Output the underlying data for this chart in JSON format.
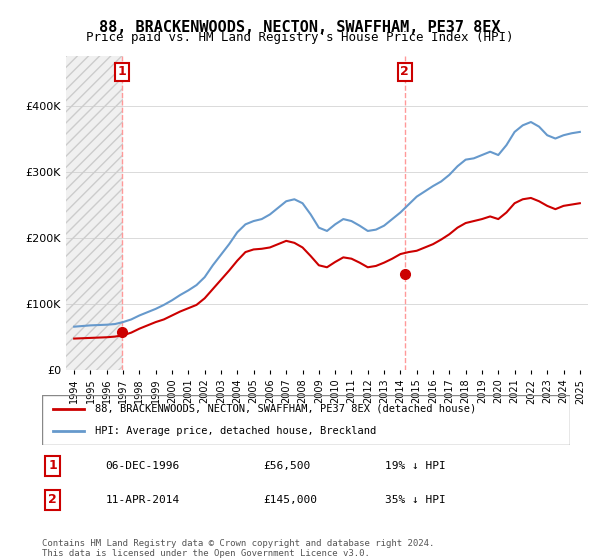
{
  "title": "88, BRACKENWOODS, NECTON, SWAFFHAM, PE37 8EX",
  "subtitle": "Price paid vs. HM Land Registry's House Price Index (HPI)",
  "legend_label_red": "88, BRACKENWOODS, NECTON, SWAFFHAM, PE37 8EX (detached house)",
  "legend_label_blue": "HPI: Average price, detached house, Breckland",
  "annotation1_label": "1",
  "annotation1_date": "06-DEC-1996",
  "annotation1_price": "£56,500",
  "annotation1_hpi": "19% ↓ HPI",
  "annotation2_label": "2",
  "annotation2_date": "11-APR-2014",
  "annotation2_price": "£145,000",
  "annotation2_hpi": "35% ↓ HPI",
  "footer": "Contains HM Land Registry data © Crown copyright and database right 2024.\nThis data is licensed under the Open Government Licence v3.0.",
  "red_color": "#cc0000",
  "blue_color": "#6699cc",
  "annotation_color": "#cc0000",
  "vline_color": "#ff9999",
  "ylim": [
    0,
    475000
  ],
  "yticks": [
    0,
    50000,
    100000,
    150000,
    200000,
    250000,
    300000,
    350000,
    400000,
    450000
  ],
  "sale1_x": 1996.92,
  "sale1_y": 56500,
  "sale2_x": 2014.27,
  "sale2_y": 145000,
  "hpi_years": [
    1994.0,
    1994.5,
    1995.0,
    1995.5,
    1996.0,
    1996.5,
    1997.0,
    1997.5,
    1998.0,
    1998.5,
    1999.0,
    1999.5,
    2000.0,
    2000.5,
    2001.0,
    2001.5,
    2002.0,
    2002.5,
    2003.0,
    2003.5,
    2004.0,
    2004.5,
    2005.0,
    2005.5,
    2006.0,
    2006.5,
    2007.0,
    2007.5,
    2008.0,
    2008.5,
    2009.0,
    2009.5,
    2010.0,
    2010.5,
    2011.0,
    2011.5,
    2012.0,
    2012.5,
    2013.0,
    2013.5,
    2014.0,
    2014.5,
    2015.0,
    2015.5,
    2016.0,
    2016.5,
    2017.0,
    2017.5,
    2018.0,
    2018.5,
    2019.0,
    2019.5,
    2020.0,
    2020.5,
    2021.0,
    2021.5,
    2022.0,
    2022.5,
    2023.0,
    2023.5,
    2024.0,
    2024.5,
    2025.0
  ],
  "hpi_values": [
    65000,
    66000,
    67000,
    67500,
    68000,
    69000,
    72000,
    76000,
    82000,
    87000,
    92000,
    98000,
    105000,
    113000,
    120000,
    128000,
    140000,
    158000,
    174000,
    190000,
    208000,
    220000,
    225000,
    228000,
    235000,
    245000,
    255000,
    258000,
    252000,
    235000,
    215000,
    210000,
    220000,
    228000,
    225000,
    218000,
    210000,
    212000,
    218000,
    228000,
    238000,
    250000,
    262000,
    270000,
    278000,
    285000,
    295000,
    308000,
    318000,
    320000,
    325000,
    330000,
    325000,
    340000,
    360000,
    370000,
    375000,
    368000,
    355000,
    350000,
    355000,
    358000,
    360000
  ],
  "price_years": [
    1994.0,
    1994.5,
    1995.0,
    1995.5,
    1996.0,
    1996.5,
    1997.0,
    1997.5,
    1998.0,
    1998.5,
    1999.0,
    1999.5,
    2000.0,
    2000.5,
    2001.0,
    2001.5,
    2002.0,
    2002.5,
    2003.0,
    2003.5,
    2004.0,
    2004.5,
    2005.0,
    2005.5,
    2006.0,
    2006.5,
    2007.0,
    2007.5,
    2008.0,
    2008.5,
    2009.0,
    2009.5,
    2010.0,
    2010.5,
    2011.0,
    2011.5,
    2012.0,
    2012.5,
    2013.0,
    2013.5,
    2014.0,
    2014.5,
    2015.0,
    2015.5,
    2016.0,
    2016.5,
    2017.0,
    2017.5,
    2018.0,
    2018.5,
    2019.0,
    2019.5,
    2020.0,
    2020.5,
    2021.0,
    2021.5,
    2022.0,
    2022.5,
    2023.0,
    2023.5,
    2024.0,
    2024.5,
    2025.0
  ],
  "price_values": [
    47000,
    47500,
    48000,
    48500,
    49000,
    50000,
    52000,
    56000,
    62000,
    67000,
    72000,
    76000,
    82000,
    88000,
    93000,
    98000,
    108000,
    122000,
    136000,
    150000,
    165000,
    178000,
    182000,
    183000,
    185000,
    190000,
    195000,
    192000,
    185000,
    172000,
    158000,
    155000,
    163000,
    170000,
    168000,
    162000,
    155000,
    157000,
    162000,
    168000,
    175000,
    178000,
    180000,
    185000,
    190000,
    197000,
    205000,
    215000,
    222000,
    225000,
    228000,
    232000,
    228000,
    238000,
    252000,
    258000,
    260000,
    255000,
    248000,
    243000,
    248000,
    250000,
    252000
  ],
  "xlim_left": 1993.5,
  "xlim_right": 2025.5,
  "xticks": [
    1994,
    1995,
    1996,
    1997,
    1998,
    1999,
    2000,
    2001,
    2002,
    2003,
    2004,
    2005,
    2006,
    2007,
    2008,
    2009,
    2010,
    2011,
    2012,
    2013,
    2014,
    2015,
    2016,
    2017,
    2018,
    2019,
    2020,
    2021,
    2022,
    2023,
    2024,
    2025
  ],
  "bg_hatch_color": "#e8e8e8",
  "grid_color": "#cccccc"
}
